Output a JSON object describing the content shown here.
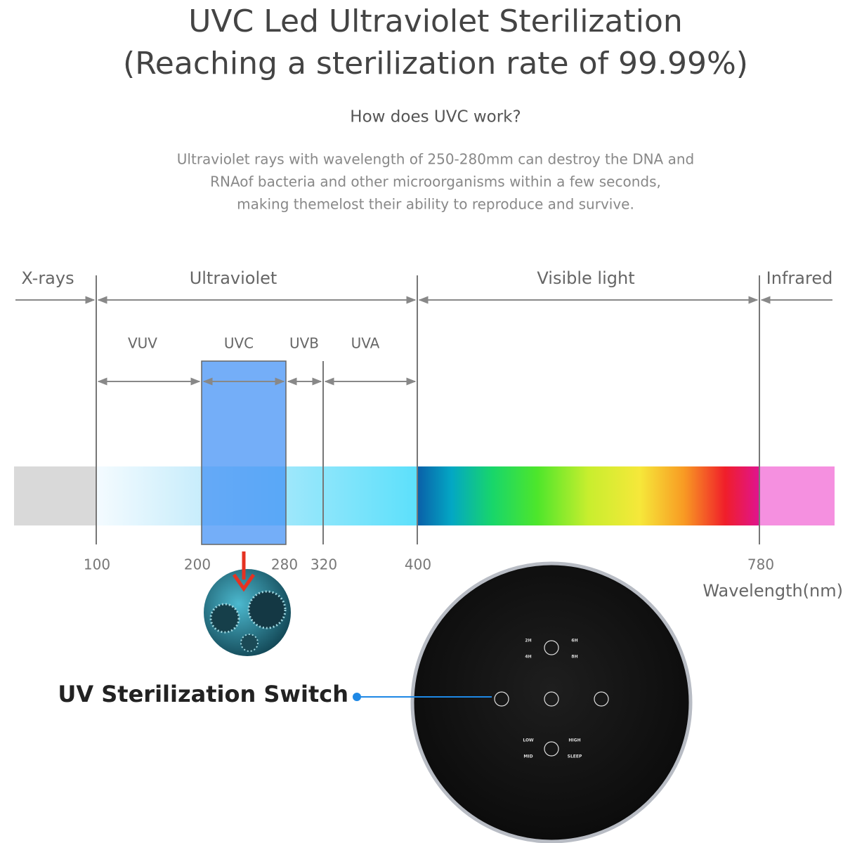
{
  "header": {
    "title_lines": [
      "UVC Led Ultraviolet Sterilization",
      "(Reaching a sterilization rate of 99.99%)"
    ],
    "subtitle": "How does UVC work?",
    "description": [
      "Ultraviolet rays with wavelength of 250-280mm can destroy the DNA and",
      "RNAof bacteria and other microorganisms within a few seconds,",
      "making themelost their ability to reproduce and survive."
    ]
  },
  "spectrum": {
    "bands": [
      "X-rays",
      "Ultraviolet",
      "Visible light",
      "Infrared"
    ],
    "subbands": [
      "VUV",
      "UVC",
      "UVB",
      "UVA"
    ],
    "ticks": [
      100,
      200,
      280,
      320,
      400,
      780
    ],
    "axis_label": "Wavelength(nm)"
  },
  "control_panel": {
    "callout": "UV Sterilization Switch",
    "timer_labels": [
      "2H",
      "6H",
      "4H",
      "8H"
    ],
    "fan_labels": [
      "LOW",
      "HIGH",
      "MID",
      "SLEEP"
    ]
  }
}
